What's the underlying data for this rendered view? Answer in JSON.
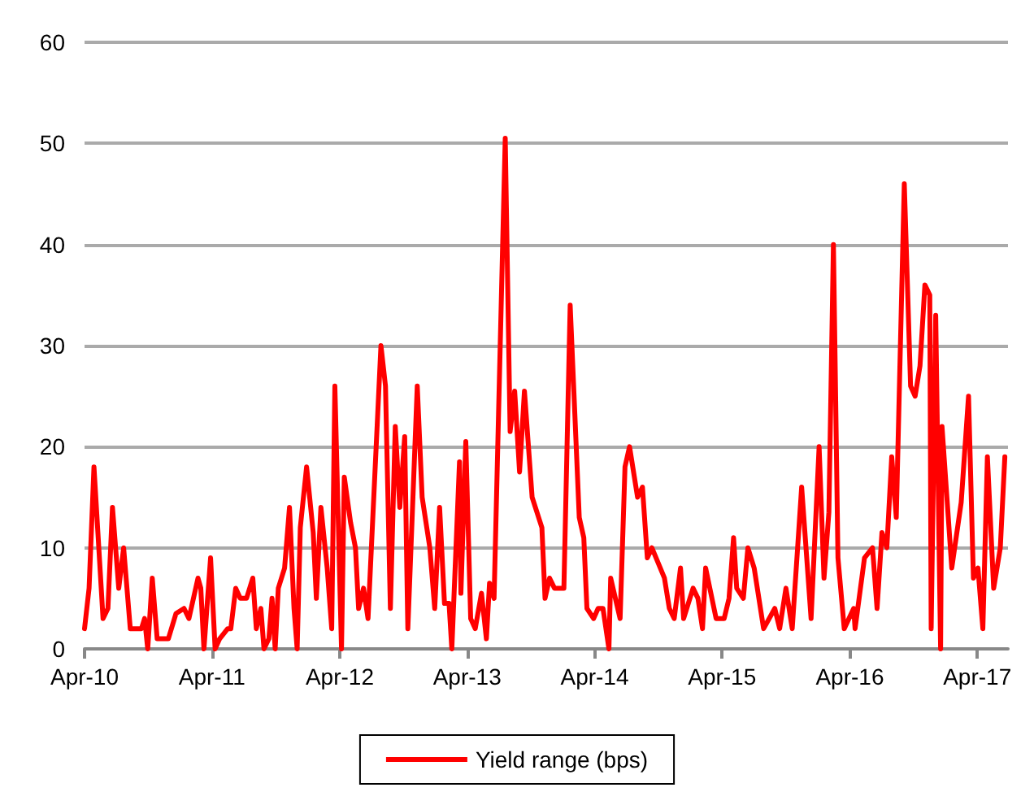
{
  "chart_data": {
    "type": "line",
    "x": [
      "2010-04-01",
      "2010-04-14",
      "2010-04-28",
      "2010-05-24",
      "2010-06-07",
      "2010-06-20",
      "2010-07-08",
      "2010-07-22",
      "2010-08-10",
      "2010-09-11",
      "2010-09-20",
      "2010-09-29",
      "2010-10-12",
      "2010-10-26",
      "2010-11-27",
      "2010-12-19",
      "2011-01-11",
      "2011-01-25",
      "2011-02-20",
      "2011-02-28",
      "2011-03-09",
      "2011-03-28",
      "2011-04-10",
      "2011-04-23",
      "2011-05-16",
      "2011-05-25",
      "2011-06-08",
      "2011-06-21",
      "2011-07-09",
      "2011-07-27",
      "2011-08-06",
      "2011-08-19",
      "2011-08-28",
      "2011-09-11",
      "2011-09-20",
      "2011-09-29",
      "2011-10-08",
      "2011-10-26",
      "2011-11-09",
      "2011-11-22",
      "2011-12-01",
      "2011-12-10",
      "2011-12-28",
      "2012-01-16",
      "2012-01-25",
      "2012-02-07",
      "2012-02-25",
      "2012-03-09",
      "2012-03-18",
      "2012-04-06",
      "2012-04-14",
      "2012-05-02",
      "2012-05-16",
      "2012-05-25",
      "2012-06-08",
      "2012-06-21",
      "2012-07-28",
      "2012-08-10",
      "2012-08-24",
      "2012-09-07",
      "2012-09-20",
      "2012-10-04",
      "2012-10-13",
      "2012-11-09",
      "2012-11-23",
      "2012-12-15",
      "2012-12-29",
      "2013-01-12",
      "2013-01-26",
      "2013-02-08",
      "2013-02-16",
      "2013-03-10",
      "2013-03-14",
      "2013-03-28",
      "2013-04-11",
      "2013-04-24",
      "2013-05-12",
      "2013-05-26",
      "2013-06-04",
      "2013-06-17",
      "2013-07-19",
      "2013-08-02",
      "2013-08-15",
      "2013-08-29",
      "2013-09-12",
      "2013-10-04",
      "2013-11-01",
      "2013-11-10",
      "2013-11-23",
      "2013-12-07",
      "2014-01-03",
      "2014-01-21",
      "2014-02-16",
      "2014-03-01",
      "2014-03-10",
      "2014-03-29",
      "2014-04-11",
      "2014-04-25",
      "2014-05-12",
      "2014-05-17",
      "2014-06-13",
      "2014-06-27",
      "2014-07-10",
      "2014-08-02",
      "2014-08-16",
      "2014-08-30",
      "2014-09-12",
      "2014-10-18",
      "2014-11-01",
      "2014-11-15",
      "2014-12-03",
      "2014-12-12",
      "2015-01-08",
      "2015-01-22",
      "2015-02-04",
      "2015-02-13",
      "2015-03-15",
      "2015-04-07",
      "2015-04-21",
      "2015-05-04",
      "2015-05-13",
      "2015-06-01",
      "2015-06-14",
      "2015-07-02",
      "2015-07-29",
      "2015-08-30",
      "2015-09-13",
      "2015-10-01",
      "2015-10-19",
      "2015-11-15",
      "2015-12-12",
      "2016-01-04",
      "2016-01-18",
      "2016-02-01",
      "2016-02-14",
      "2016-02-27",
      "2016-03-16",
      "2016-04-12",
      "2016-04-16",
      "2016-05-13",
      "2016-06-05",
      "2016-06-18",
      "2016-07-02",
      "2016-07-16",
      "2016-07-30",
      "2016-08-12",
      "2016-09-04",
      "2016-09-22",
      "2016-10-05",
      "2016-10-19",
      "2016-11-02",
      "2016-11-16",
      "2016-11-20",
      "2016-12-03",
      "2016-12-17",
      "2016-12-21",
      "2017-01-18",
      "2017-02-14",
      "2017-03-07",
      "2017-03-21",
      "2017-04-03",
      "2017-04-17",
      "2017-04-30",
      "2017-05-18",
      "2017-06-06",
      "2017-06-19"
    ],
    "series": [
      {
        "name": "Yield range (bps)",
        "color": "#ff0000",
        "values": [
          2,
          6,
          18,
          3,
          4,
          14,
          6,
          10,
          2,
          2,
          3,
          0,
          7,
          1,
          1,
          3.5,
          4,
          3,
          7,
          6,
          0,
          9,
          0,
          1,
          2,
          2,
          6,
          5,
          5,
          7,
          2,
          4,
          0,
          1,
          5,
          0,
          6,
          8,
          14,
          4,
          0,
          12,
          18,
          11.5,
          5,
          14,
          8,
          2,
          26,
          0,
          17,
          12.5,
          10,
          4,
          6,
          3,
          30,
          26,
          4,
          22,
          14,
          21,
          2,
          26,
          15,
          10,
          4,
          14,
          4.5,
          4.5,
          0,
          18.5,
          5.5,
          20.5,
          3,
          2,
          5.5,
          1,
          6.5,
          5,
          50.5,
          21.5,
          25.5,
          17.5,
          25.5,
          15,
          12,
          5,
          7,
          6,
          6,
          34,
          13,
          11,
          4,
          3,
          4,
          4,
          0,
          7,
          3,
          18,
          20,
          15,
          16,
          9,
          10,
          7,
          4,
          3,
          8,
          3,
          6,
          5,
          2,
          8,
          3,
          3,
          5,
          11,
          6,
          5,
          10,
          8,
          2,
          4,
          2,
          6,
          2,
          16,
          3,
          20,
          7,
          13.5,
          40,
          9,
          2,
          4,
          2,
          9,
          10,
          4,
          11.5,
          10,
          19,
          13,
          46,
          26,
          25,
          28,
          36,
          35,
          2,
          33,
          0,
          22,
          8,
          14.5,
          25,
          7,
          8,
          2,
          19,
          6,
          10,
          19
        ]
      }
    ],
    "xlim": [
      "2010-04-01",
      "2017-06-28"
    ],
    "xticks": [
      {
        "value": "2010-04-01",
        "label": "Apr-10"
      },
      {
        "value": "2011-04-01",
        "label": "Apr-11"
      },
      {
        "value": "2012-04-01",
        "label": "Apr-12"
      },
      {
        "value": "2013-04-01",
        "label": "Apr-13"
      },
      {
        "value": "2014-04-01",
        "label": "Apr-14"
      },
      {
        "value": "2015-04-01",
        "label": "Apr-15"
      },
      {
        "value": "2016-04-01",
        "label": "Apr-16"
      },
      {
        "value": "2017-04-01",
        "label": "Apr-17"
      }
    ],
    "ylim": [
      0,
      60
    ],
    "yticks": [
      0,
      10,
      20,
      30,
      40,
      50,
      60
    ],
    "grid": "y",
    "legend": "bottom",
    "marker": "none",
    "line_style": "solid"
  }
}
